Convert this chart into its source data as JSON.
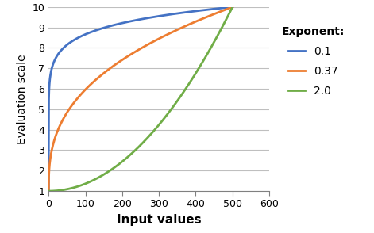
{
  "title": "",
  "xlabel": "Input values",
  "ylabel": "Evaluation scale",
  "legend_title": "Exponent:",
  "exponents": [
    0.1,
    0.37,
    2.0
  ],
  "legend_labels": [
    "0.1",
    "0.37",
    "2.0"
  ],
  "colors": [
    "#4472C4",
    "#ED7D31",
    "#70AD47"
  ],
  "x_min": 0,
  "x_max": 500,
  "y_min": 1,
  "y_max": 10,
  "xlim": [
    0,
    600
  ],
  "ylim": [
    1,
    10
  ],
  "yticks": [
    1,
    2,
    3,
    4,
    5,
    6,
    7,
    8,
    9,
    10
  ],
  "xticks": [
    0,
    100,
    200,
    300,
    400,
    500,
    600
  ],
  "line_width": 2.0,
  "background_color": "#FFFFFF",
  "grid_color": "#BFBFBF",
  "xlabel_fontsize": 11,
  "ylabel_fontsize": 10,
  "tick_fontsize": 9,
  "legend_title_fontsize": 10,
  "legend_fontsize": 10
}
